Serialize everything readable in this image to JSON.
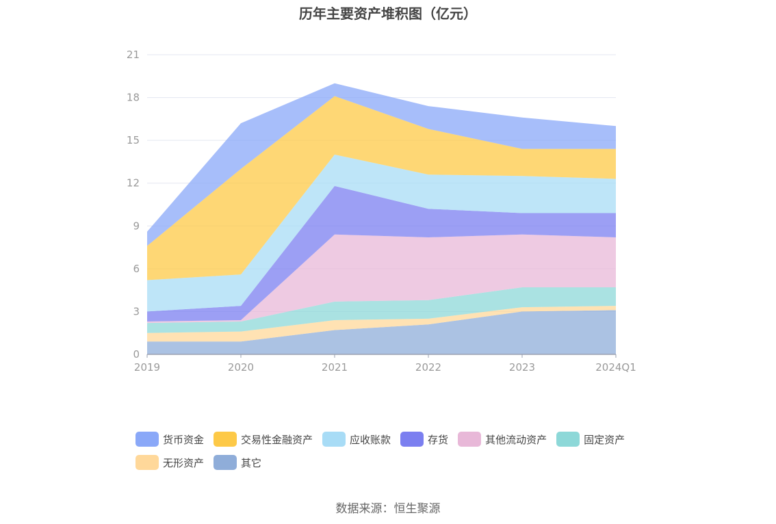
{
  "chart_data": {
    "type": "area",
    "stacked": true,
    "title": "历年主要资产堆积图（亿元）",
    "categories": [
      "2019",
      "2020",
      "2021",
      "2022",
      "2023",
      "2024Q1"
    ],
    "ylim": [
      0,
      21
    ],
    "yticks": [
      0,
      3,
      6,
      9,
      12,
      15,
      18,
      21
    ],
    "grid": true,
    "legend_position": "bottom",
    "series": [
      {
        "name": "其它",
        "color": "#8fadd9",
        "values": [
          0.9,
          0.9,
          1.7,
          2.1,
          3.0,
          3.1
        ]
      },
      {
        "name": "无形资产",
        "color": "#ffd89a",
        "values": [
          0.6,
          0.7,
          0.7,
          0.4,
          0.3,
          0.3
        ]
      },
      {
        "name": "固定资产",
        "color": "#8dd8d8",
        "values": [
          0.7,
          0.7,
          1.3,
          1.3,
          1.4,
          1.3
        ]
      },
      {
        "name": "其他流动资产",
        "color": "#e8b8d8",
        "values": [
          0.1,
          0.1,
          4.7,
          4.4,
          3.7,
          3.5
        ]
      },
      {
        "name": "存货",
        "color": "#7b7ff0",
        "values": [
          0.7,
          1.0,
          3.4,
          2.0,
          1.5,
          1.7
        ]
      },
      {
        "name": "应收账款",
        "color": "#a8dcf6",
        "values": [
          2.2,
          2.2,
          2.2,
          2.4,
          2.6,
          2.4
        ]
      },
      {
        "name": "交易性金融资产",
        "color": "#fdc947",
        "values": [
          2.4,
          7.4,
          4.1,
          3.2,
          1.9,
          2.1
        ]
      },
      {
        "name": "货币资金",
        "color": "#8aa8f8",
        "values": [
          1.0,
          3.2,
          0.9,
          1.6,
          2.2,
          1.6
        ]
      }
    ],
    "legend_order": [
      "货币资金",
      "交易性金融资产",
      "应收账款",
      "存货",
      "其他流动资产",
      "固定资产",
      "无形资产",
      "其它"
    ]
  },
  "source_text": "数据来源：恒生聚源"
}
